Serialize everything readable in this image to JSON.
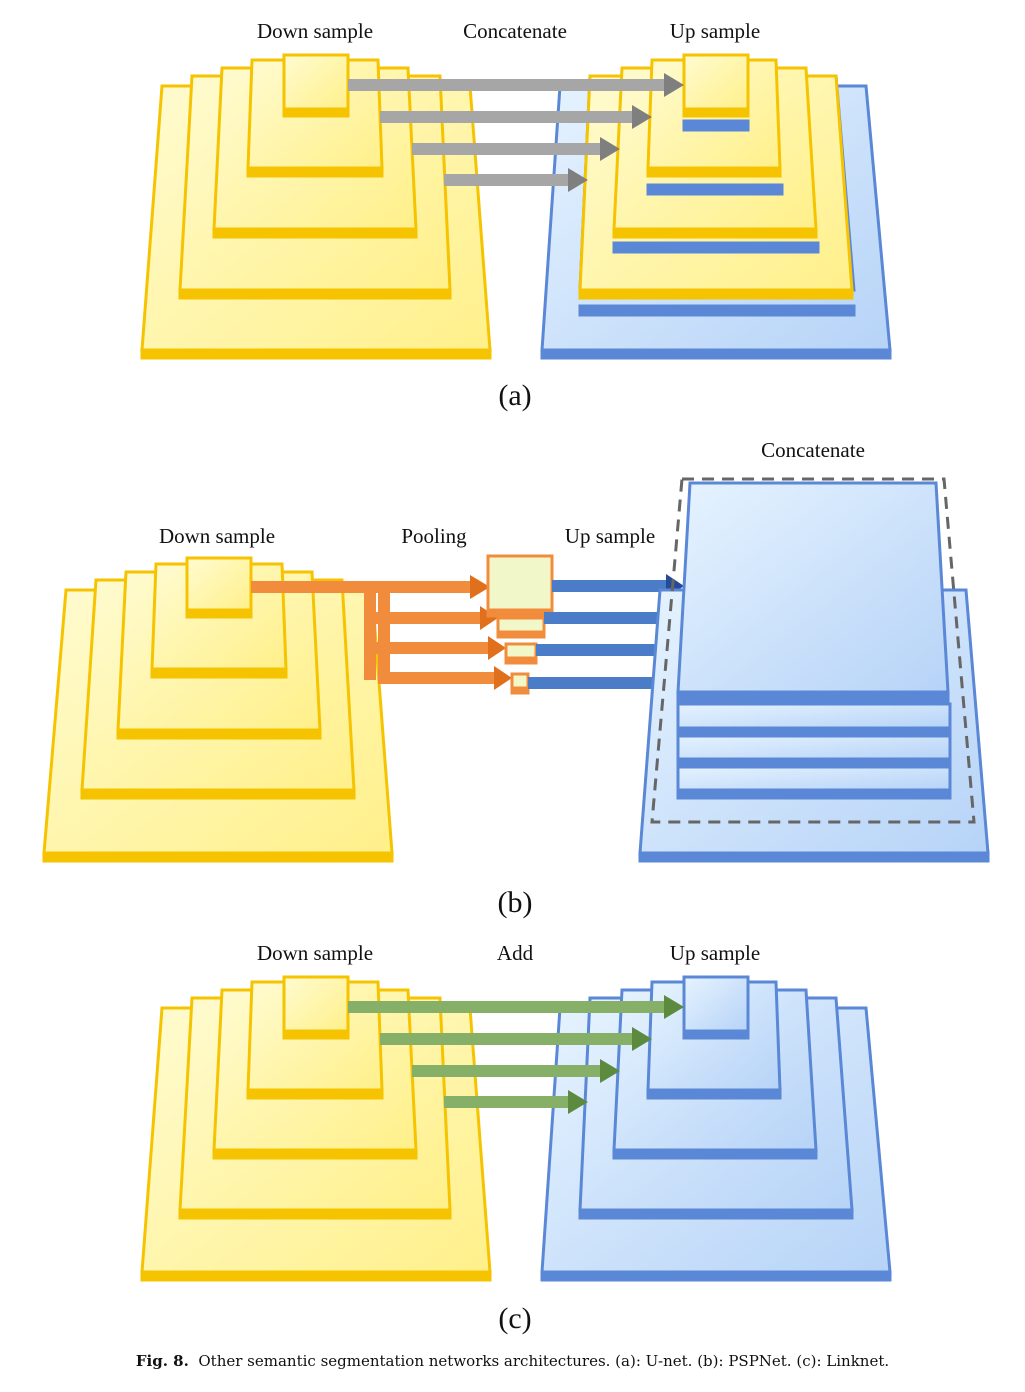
{
  "panels": {
    "a": {
      "label": "(a)",
      "down_label": "Down sample",
      "skip_label": "Concatenate",
      "up_label": "Up sample",
      "arrow_color": "#a6a6a6",
      "arrow_head": "#7f7f7f"
    },
    "b": {
      "label": "(b)",
      "down_label": "Down sample",
      "pool_label": "Pooling",
      "up_label": "Up sample",
      "concat_label": "Concatenate",
      "pool_arrow_color": "#f08c3c",
      "up_arrow_color": "#4a7cc8"
    },
    "c": {
      "label": "(c)",
      "down_label": "Down sample",
      "skip_label": "Add",
      "up_label": "Up sample",
      "arrow_color": "#86b068",
      "arrow_head": "#5c8a3f"
    }
  },
  "colors": {
    "yellow_fill": "#fff39a",
    "yellow_edge": "#f5c300",
    "blue_fill": "#c9e2fb",
    "blue_edge": "#5a88d6",
    "orange_edge": "#f08c3c",
    "pool_fill": "#f2f7c9"
  },
  "caption": {
    "prefix": "Fig. 8.",
    "text": "Other semantic segmentation networks architectures. (a): U-net. (b): PSPNet. (c): Linknet."
  }
}
